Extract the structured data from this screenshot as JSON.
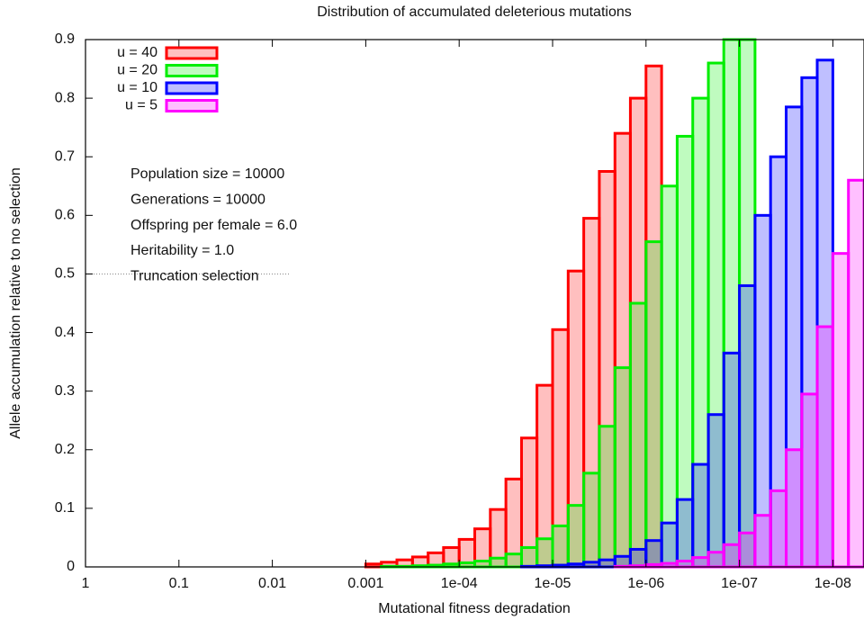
{
  "chart_data": {
    "type": "histogram",
    "title": "Distribution of accumulated deleterious mutations",
    "xlabel": "Mutational fitness degradation",
    "ylabel": "Allele accumulation relative to no selection",
    "xscale": "log",
    "xlim": [
      1,
      4.64e-09
    ],
    "ylim": [
      0,
      0.9
    ],
    "xticks": [
      1,
      0.1,
      0.01,
      0.001,
      {
        "value": 0.0001,
        "label": "1e-04"
      },
      {
        "value": 1e-05,
        "label": "1e-05"
      },
      {
        "value": 1e-06,
        "label": "1e-06"
      },
      {
        "value": 1e-07,
        "label": "1e-07"
      },
      {
        "value": 1e-08,
        "label": "1e-08"
      }
    ],
    "yticks": [
      0,
      0.1,
      0.2,
      0.3,
      0.4,
      0.5,
      0.6,
      0.7,
      0.8,
      0.9
    ],
    "legend": "top-left",
    "hline": 0.5,
    "annotations": [
      "Population size = 10000",
      "Generations = 10000",
      "Offspring per female = 6.0",
      "Heritability = 1.0",
      "Truncation selection"
    ],
    "bins": [
      0.001,
      0.000681,
      0.000464,
      0.000316,
      0.000215,
      0.000147,
      0.0001,
      6.81e-05,
      4.64e-05,
      3.16e-05,
      2.15e-05,
      1.47e-05,
      1e-05,
      6.81e-06,
      4.64e-06,
      3.16e-06,
      2.15e-06,
      1.47e-06,
      1e-06,
      6.81e-07,
      4.64e-07,
      3.16e-07,
      2.15e-07,
      1.47e-07,
      1e-07,
      6.81e-08,
      4.64e-08,
      3.16e-08,
      2.15e-08,
      1.47e-08,
      1e-08,
      6.81e-09,
      4.64e-09
    ],
    "series": [
      {
        "name": "u = 40",
        "color": "#ff0000",
        "values": [
          0.005,
          0.008,
          0.012,
          0.017,
          0.024,
          0.033,
          0.047,
          0.065,
          0.098,
          0.15,
          0.22,
          0.31,
          0.405,
          0.505,
          0.595,
          0.675,
          0.74,
          0.8,
          0.855,
          0,
          0,
          0,
          0,
          0,
          0,
          0,
          0,
          0,
          0,
          0,
          0,
          0
        ]
      },
      {
        "name": "u = 20",
        "color": "#00ee00",
        "values": [
          0,
          0.001,
          0.001,
          0.002,
          0.003,
          0.005,
          0.007,
          0.01,
          0.015,
          0.022,
          0.033,
          0.048,
          0.07,
          0.105,
          0.16,
          0.24,
          0.34,
          0.45,
          0.555,
          0.65,
          0.735,
          0.8,
          0.86,
          0.9,
          0.9,
          0,
          0,
          0,
          0,
          0,
          0,
          0
        ]
      },
      {
        "name": "u = 10",
        "color": "#0000ff",
        "values": [
          0,
          0,
          0,
          0,
          0,
          0,
          0,
          0,
          0,
          0,
          0.001,
          0.002,
          0.003,
          0.005,
          0.008,
          0.012,
          0.018,
          0.03,
          0.045,
          0.075,
          0.115,
          0.175,
          0.26,
          0.365,
          0.48,
          0.6,
          0.7,
          0.785,
          0.835,
          0.865,
          0,
          0
        ]
      },
      {
        "name": "u = 5",
        "color": "#ff00ff",
        "values": [
          0,
          0,
          0,
          0,
          0,
          0,
          0,
          0,
          0,
          0,
          0,
          0,
          0,
          0,
          0,
          0,
          0.001,
          0.002,
          0.004,
          0.006,
          0.01,
          0.016,
          0.025,
          0.038,
          0.058,
          0.088,
          0.13,
          0.2,
          0.295,
          0.41,
          0.535,
          0.66
        ]
      }
    ]
  }
}
